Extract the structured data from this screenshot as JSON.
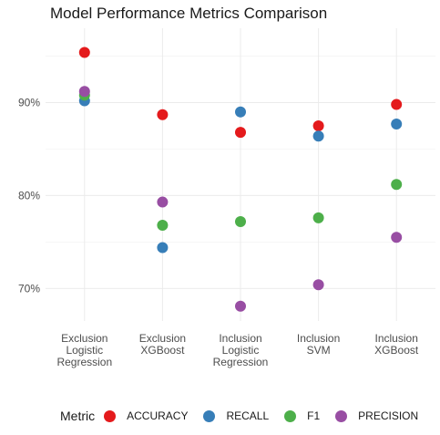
{
  "chart_data": {
    "type": "scatter",
    "title": "Model Performance Metrics Comparison",
    "xlabel": "",
    "ylabel": "",
    "categories": [
      [
        "Exclusion",
        "Logistic",
        "Regression"
      ],
      [
        "Exclusion",
        "XGBoost"
      ],
      [
        "Inclusion",
        "Logistic",
        "Regression"
      ],
      [
        "Inclusion",
        "SVM"
      ],
      [
        "Inclusion",
        "XGBoost"
      ]
    ],
    "series": [
      {
        "name": "ACCURACY",
        "color": "#e41a1c",
        "values": [
          95.4,
          88.7,
          86.8,
          87.5,
          89.8
        ]
      },
      {
        "name": "RECALL",
        "color": "#377eb8",
        "values": [
          90.2,
          74.4,
          89.0,
          86.4,
          87.7
        ]
      },
      {
        "name": "F1",
        "color": "#4daf4a",
        "values": [
          90.8,
          76.8,
          77.2,
          77.6,
          81.2
        ]
      },
      {
        "name": "PRECISION",
        "color": "#984ea3",
        "values": [
          91.2,
          79.3,
          68.1,
          70.4,
          75.5
        ]
      }
    ],
    "yticks": [
      70,
      80,
      90
    ],
    "ytick_labels": [
      "70%",
      "80%",
      "90%"
    ],
    "ylim": [
      66.5,
      98
    ],
    "grid": true,
    "legend": {
      "title": "Metric",
      "placement": "bottom"
    }
  }
}
